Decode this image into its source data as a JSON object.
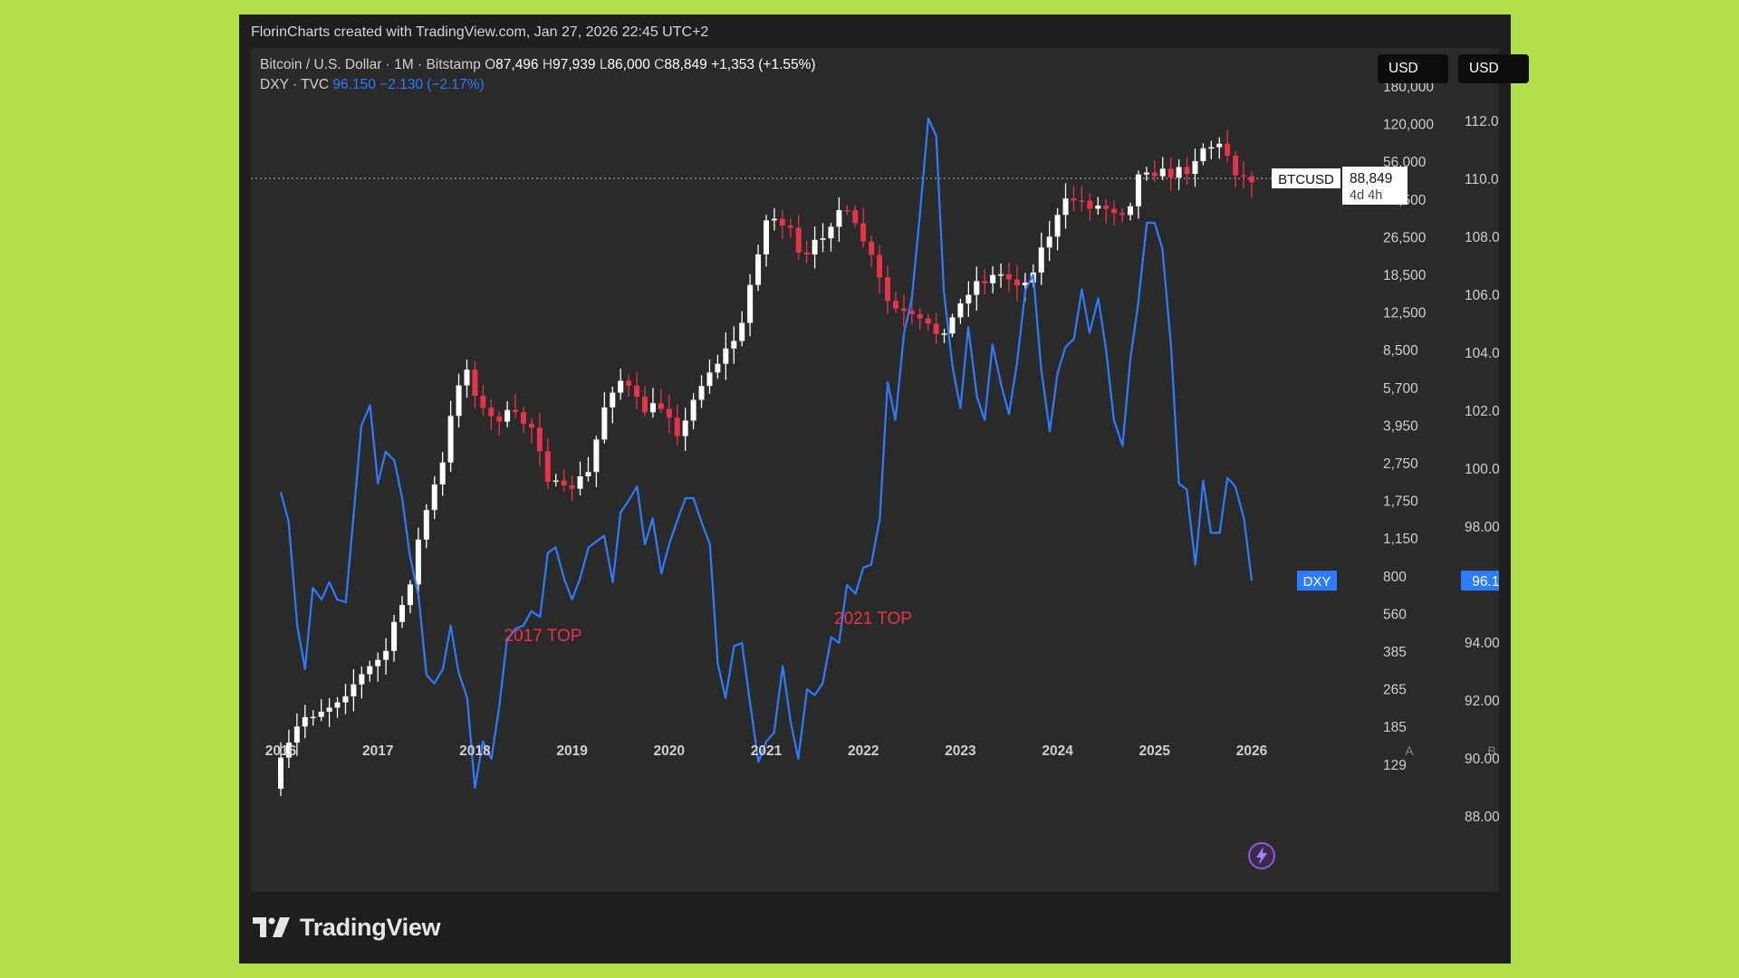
{
  "header": {
    "caption": "FlorinCharts created with TradingView.com, Jan 27, 2026 22:45 UTC+2"
  },
  "legend": {
    "btc": {
      "symbol": "Bitcoin / U.S. Dollar · 1M · Bitstamp",
      "o_label": "O",
      "o_value": "87,496",
      "h_label": "H",
      "h_value": "97,939",
      "l_label": "L",
      "l_value": "86,000",
      "c_label": "C",
      "c_value": "88,849",
      "change": "+1,353 (+1.55%)"
    },
    "dxy": {
      "symbol": "DXY · TVC",
      "value": "96.150",
      "change": "−2.130 (−2.17%)"
    }
  },
  "scale_buttons": [
    "USD",
    "USD"
  ],
  "branding": {
    "logo_text": "TradingView"
  },
  "colors": {
    "background": "#b3e04a",
    "panel": "#2a2a2b",
    "frame": "#1e1e1f",
    "up_candle": "#ffffff",
    "down_candle": "#e8344a",
    "dxy_line": "#2e7bff",
    "annotation": "#e8344a"
  },
  "chart_data": {
    "type": "line",
    "title": "",
    "x_ticks": [
      "2016",
      "2017",
      "2018",
      "2019",
      "2020",
      "2021",
      "2022",
      "2023",
      "2024",
      "2025",
      "2026"
    ],
    "scale_a_label": "A",
    "scale_b_label": "B",
    "scale_a_ticks": [
      "180,000",
      "120,000",
      "56,000",
      "38,500",
      "26,500",
      "18,500",
      "12,500",
      "8,500",
      "5,700",
      "3,950",
      "2,750",
      "1,750",
      "1,150",
      "800",
      "560",
      "385",
      "265",
      "185",
      "129"
    ],
    "scale_b_ticks": [
      "112.000",
      "110.000",
      "108.000",
      "106.000",
      "104.000",
      "102.000",
      "100.000",
      "98.000",
      "96.000",
      "94.000",
      "92.000",
      "90.000",
      "88.000"
    ],
    "ylim_b": [
      87.0,
      114.0
    ],
    "series": [
      {
        "name": "DXY",
        "type": "line",
        "x": [
          2016.0,
          2016.08,
          2016.17,
          2016.25,
          2016.33,
          2016.42,
          2016.5,
          2016.58,
          2016.67,
          2016.75,
          2016.83,
          2016.92,
          2017.0,
          2017.08,
          2017.17,
          2017.25,
          2017.33,
          2017.42,
          2017.5,
          2017.58,
          2017.67,
          2017.75,
          2017.83,
          2017.92,
          2018.0,
          2018.08,
          2018.17,
          2018.25,
          2018.33,
          2018.42,
          2018.5,
          2018.58,
          2018.67,
          2018.75,
          2018.83,
          2018.92,
          2019.0,
          2019.08,
          2019.17,
          2019.25,
          2019.33,
          2019.42,
          2019.5,
          2019.58,
          2019.67,
          2019.75,
          2019.83,
          2019.92,
          2020.0,
          2020.08,
          2020.17,
          2020.25,
          2020.33,
          2020.42,
          2020.5,
          2020.58,
          2020.67,
          2020.75,
          2020.83,
          2020.92,
          2021.0,
          2021.08,
          2021.17,
          2021.25,
          2021.33,
          2021.42,
          2021.5,
          2021.58,
          2021.67,
          2021.75,
          2021.83,
          2021.92,
          2022.0,
          2022.08,
          2022.17,
          2022.25,
          2022.33,
          2022.42,
          2022.5,
          2022.58,
          2022.67,
          2022.75,
          2022.83,
          2022.92,
          2023.0,
          2023.08,
          2023.17,
          2023.25,
          2023.33,
          2023.42,
          2023.5,
          2023.58,
          2023.67,
          2023.75,
          2023.83,
          2023.92,
          2024.0,
          2024.08,
          2024.17,
          2024.25,
          2024.33,
          2024.42,
          2024.5,
          2024.58,
          2024.67,
          2024.75,
          2024.83,
          2024.92,
          2025.0,
          2025.08,
          2025.17,
          2025.25,
          2025.33,
          2025.42,
          2025.5,
          2025.58,
          2025.67,
          2025.75,
          2025.83,
          2025.92,
          2026.0
        ],
        "values": [
          99.2,
          98.2,
          94.6,
          93.1,
          95.9,
          95.5,
          96.1,
          95.5,
          95.4,
          98.4,
          101.5,
          102.2,
          99.5,
          100.6,
          100.3,
          99.0,
          97.0,
          95.6,
          92.9,
          92.6,
          93.1,
          94.6,
          93.0,
          92.1,
          89.0,
          90.6,
          90.0,
          91.8,
          94.1,
          94.5,
          94.6,
          95.1,
          94.9,
          97.1,
          97.3,
          96.2,
          95.5,
          96.2,
          97.3,
          97.5,
          97.7,
          96.1,
          98.5,
          98.9,
          99.4,
          97.4,
          98.3,
          96.4,
          97.4,
          98.2,
          99.0,
          99.0,
          98.2,
          97.4,
          93.3,
          92.1,
          93.9,
          94.0,
          92.0,
          89.9,
          90.6,
          90.9,
          93.2,
          91.3,
          90.0,
          92.4,
          92.2,
          92.6,
          94.2,
          94.0,
          96.0,
          95.7,
          96.6,
          96.7,
          98.3,
          103.0,
          101.7,
          104.7,
          105.9,
          108.7,
          112.1,
          111.5,
          106.1,
          103.5,
          102.1,
          104.9,
          102.5,
          101.7,
          104.3,
          102.9,
          101.9,
          103.6,
          106.2,
          106.7,
          103.5,
          101.3,
          103.3,
          104.2,
          104.5,
          106.2,
          104.7,
          105.9,
          104.1,
          101.7,
          100.8,
          103.8,
          105.7,
          108.5,
          108.5,
          107.6,
          104.2,
          99.5,
          99.3,
          96.7,
          99.6,
          97.8,
          97.8,
          99.7,
          99.4,
          98.3,
          96.15
        ]
      },
      {
        "name": "BTCUSD",
        "type": "candlestick",
        "label_value": "88,849",
        "label_countdown": "4d 4h",
        "candle_count": 121
      }
    ],
    "annotations": [
      {
        "text": "2017 TOP"
      },
      {
        "text": "2021 TOP"
      }
    ],
    "current_labels": {
      "dxy_tag": "DXY",
      "dxy_value": "96.150",
      "btc_tag": "BTCUSD",
      "btc_value": "88,849",
      "btc_countdown": "4d 4h"
    }
  }
}
